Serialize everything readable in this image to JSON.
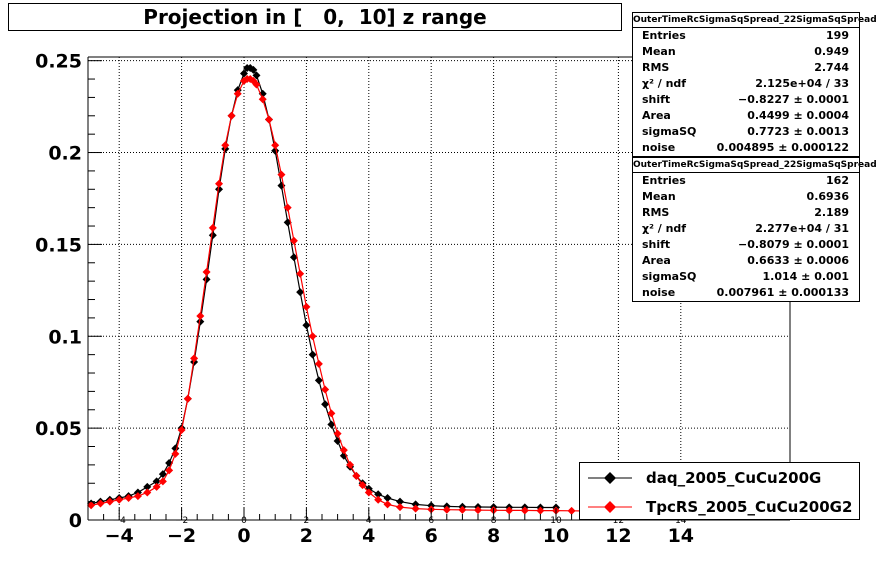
{
  "title": "Projection in [   0,  10] z range",
  "chart_data": {
    "type": "scatter",
    "title": "Projection in [   0,  10] z range",
    "xlim": [
      -5,
      17.5
    ],
    "ylim": [
      0,
      0.252
    ],
    "x_ticks": [
      -4,
      -2,
      0,
      2,
      4,
      6,
      8,
      10,
      12,
      14
    ],
    "y_ticks": [
      0,
      0.05,
      0.1,
      0.15,
      0.2,
      0.25
    ],
    "x_tick_labels": [
      "−4",
      "−2",
      "0",
      "2",
      "4",
      "6",
      "8",
      "10",
      "12",
      "14"
    ],
    "x_tick_labels_small": [
      "−4",
      "−2",
      "0",
      "2",
      "4",
      "6",
      "8",
      "10",
      "12",
      "14"
    ],
    "y_tick_labels": [
      "0",
      "0.05",
      "0.1",
      "0.15",
      "0.2",
      "0.25"
    ],
    "grid": true,
    "legend_position": "bottom-right",
    "series": [
      {
        "name": "daq_2005_CuCu200G",
        "color": "#000000",
        "points": [
          [
            -4.9,
            0.009
          ],
          [
            -4.6,
            0.01
          ],
          [
            -4.3,
            0.011
          ],
          [
            -4.0,
            0.012
          ],
          [
            -3.7,
            0.013
          ],
          [
            -3.4,
            0.015
          ],
          [
            -3.1,
            0.018
          ],
          [
            -2.8,
            0.021
          ],
          [
            -2.6,
            0.025
          ],
          [
            -2.4,
            0.031
          ],
          [
            -2.2,
            0.039
          ],
          [
            -2.0,
            0.05
          ],
          [
            -1.8,
            0.066
          ],
          [
            -1.6,
            0.086
          ],
          [
            -1.4,
            0.108
          ],
          [
            -1.2,
            0.131
          ],
          [
            -1.0,
            0.155
          ],
          [
            -0.8,
            0.18
          ],
          [
            -0.6,
            0.202
          ],
          [
            -0.4,
            0.22
          ],
          [
            -0.2,
            0.234
          ],
          [
            0.0,
            0.243
          ],
          [
            0.1,
            0.246
          ],
          [
            0.2,
            0.246
          ],
          [
            0.3,
            0.245
          ],
          [
            0.4,
            0.242
          ],
          [
            0.6,
            0.232
          ],
          [
            0.8,
            0.218
          ],
          [
            1.0,
            0.201
          ],
          [
            1.2,
            0.182
          ],
          [
            1.4,
            0.162
          ],
          [
            1.6,
            0.143
          ],
          [
            1.8,
            0.124
          ],
          [
            2.0,
            0.106
          ],
          [
            2.2,
            0.09
          ],
          [
            2.4,
            0.076
          ],
          [
            2.6,
            0.063
          ],
          [
            2.8,
            0.052
          ],
          [
            3.0,
            0.043
          ],
          [
            3.2,
            0.035
          ],
          [
            3.4,
            0.029
          ],
          [
            3.6,
            0.024
          ],
          [
            3.8,
            0.02
          ],
          [
            4.0,
            0.017
          ],
          [
            4.3,
            0.014
          ],
          [
            4.6,
            0.012
          ],
          [
            5.0,
            0.01
          ],
          [
            5.5,
            0.0085
          ],
          [
            6.0,
            0.0078
          ],
          [
            6.5,
            0.0074
          ],
          [
            7.0,
            0.0072
          ],
          [
            7.5,
            0.0071
          ],
          [
            8.0,
            0.007
          ],
          [
            8.5,
            0.0069
          ],
          [
            9.0,
            0.0069
          ],
          [
            9.5,
            0.0068
          ],
          [
            10.0,
            0.0068
          ]
        ]
      },
      {
        "name": "TpcRS_2005_CuCu200G2",
        "color": "#ff0000",
        "points": [
          [
            -4.9,
            0.008
          ],
          [
            -4.6,
            0.009
          ],
          [
            -4.3,
            0.01
          ],
          [
            -4.0,
            0.011
          ],
          [
            -3.7,
            0.012
          ],
          [
            -3.4,
            0.013
          ],
          [
            -3.1,
            0.015
          ],
          [
            -2.8,
            0.018
          ],
          [
            -2.6,
            0.021
          ],
          [
            -2.4,
            0.027
          ],
          [
            -2.2,
            0.036
          ],
          [
            -2.0,
            0.049
          ],
          [
            -1.8,
            0.066
          ],
          [
            -1.6,
            0.088
          ],
          [
            -1.4,
            0.111
          ],
          [
            -1.2,
            0.135
          ],
          [
            -1.0,
            0.159
          ],
          [
            -0.8,
            0.183
          ],
          [
            -0.6,
            0.204
          ],
          [
            -0.4,
            0.22
          ],
          [
            -0.2,
            0.232
          ],
          [
            0.0,
            0.239
          ],
          [
            0.1,
            0.24
          ],
          [
            0.2,
            0.24
          ],
          [
            0.3,
            0.239
          ],
          [
            0.4,
            0.237
          ],
          [
            0.6,
            0.229
          ],
          [
            0.8,
            0.218
          ],
          [
            1.0,
            0.204
          ],
          [
            1.2,
            0.188
          ],
          [
            1.4,
            0.17
          ],
          [
            1.6,
            0.152
          ],
          [
            1.8,
            0.134
          ],
          [
            2.0,
            0.116
          ],
          [
            2.2,
            0.1
          ],
          [
            2.4,
            0.085
          ],
          [
            2.6,
            0.071
          ],
          [
            2.8,
            0.058
          ],
          [
            3.0,
            0.047
          ],
          [
            3.2,
            0.038
          ],
          [
            3.4,
            0.03
          ],
          [
            3.6,
            0.024
          ],
          [
            3.8,
            0.019
          ],
          [
            4.0,
            0.015
          ],
          [
            4.3,
            0.011
          ],
          [
            4.6,
            0.0085
          ],
          [
            5.0,
            0.007
          ],
          [
            5.5,
            0.0062
          ],
          [
            6.0,
            0.0058
          ],
          [
            6.5,
            0.0056
          ],
          [
            7.0,
            0.0055
          ],
          [
            7.5,
            0.0054
          ],
          [
            8.0,
            0.0053
          ],
          [
            8.5,
            0.0052
          ],
          [
            9.0,
            0.0052
          ],
          [
            9.5,
            0.0051
          ],
          [
            10.0,
            0.0051
          ],
          [
            10.5,
            0.005
          ],
          [
            11.0,
            0.0049
          ]
        ]
      }
    ]
  },
  "stats": [
    {
      "title": "OuterTimeRcSigmaSqSpread_22SigmaSqSpread",
      "rows": [
        {
          "label": "Entries",
          "value": "199"
        },
        {
          "label": "Mean",
          "value": "0.949"
        },
        {
          "label": "RMS",
          "value": "2.744"
        },
        {
          "label": "χ² / ndf",
          "value": "2.125e+04 / 33"
        },
        {
          "label": "shift",
          "value": "−0.8227 ± 0.0001"
        },
        {
          "label": "Area",
          "value": "0.4499 ± 0.0004"
        },
        {
          "label": "sigmaSQ",
          "value": "0.7723 ± 0.0013"
        },
        {
          "label": "noise",
          "value": "0.004895 ± 0.000122"
        }
      ]
    },
    {
      "title": "OuterTimeRcSigmaSqSpread_22SigmaSqSpread",
      "rows": [
        {
          "label": "Entries",
          "value": "162"
        },
        {
          "label": "Mean",
          "value": "0.6936"
        },
        {
          "label": "RMS",
          "value": "2.189"
        },
        {
          "label": "χ² / ndf",
          "value": "2.277e+04 / 31"
        },
        {
          "label": "shift",
          "value": "−0.8079 ± 0.0001"
        },
        {
          "label": "Area",
          "value": "0.6633 ± 0.0006"
        },
        {
          "label": "sigmaSQ",
          "value": "1.014 ± 0.001"
        },
        {
          "label": "noise",
          "value": "0.007961 ± 0.000133"
        }
      ]
    }
  ],
  "legend": [
    {
      "label": "daq_2005_CuCu200G",
      "color": "#000000"
    },
    {
      "label": "TpcRS_2005_CuCu200G2",
      "color": "#ff0000"
    }
  ]
}
